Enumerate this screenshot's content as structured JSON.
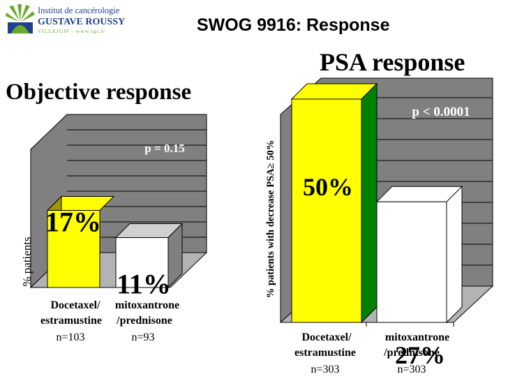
{
  "header": {
    "logo_line1": "Institut de cancérologie",
    "logo_line2": "GUSTAVE ROUSSY",
    "logo_line3": "VILLEJUIF - www.igr.fr",
    "title": "SWOG 9916: Response"
  },
  "colors": {
    "docetaxel": "#ffff00",
    "docetaxel_side_left": "#999900",
    "docetaxel_side_right": "#008000",
    "mitoxantrone": "#ffffff",
    "wall": "#808080",
    "floor": "#b3b3b3",
    "logo_blue": "#1f3f8f",
    "logo_green": "#6aaa2a"
  },
  "chart_data": [
    {
      "type": "bar",
      "title": "Objective response",
      "ylabel": "% patients",
      "categories": [
        "Docetaxel/ estramustine",
        "mitoxantrone /prednisone"
      ],
      "category_lines": [
        [
          "Docetaxel/",
          "estramustine"
        ],
        [
          "mitoxantrone",
          "/prednisone"
        ]
      ],
      "n_labels": [
        "n=103",
        "n=93"
      ],
      "values": [
        17,
        11
      ],
      "value_labels": [
        "17%",
        "11%"
      ],
      "annotation": "p = 0.15",
      "grid": true
    },
    {
      "type": "bar",
      "title": "PSA response",
      "ylabel": "% patients with decrease PSA≥ 50%",
      "categories": [
        "Docetaxel/ estramustine",
        "mitoxantrone /prednisone"
      ],
      "category_lines": [
        [
          "Docetaxel/",
          "estramustine"
        ],
        [
          "mitoxantrone",
          "/prednisone"
        ]
      ],
      "n_labels": [
        "n=303",
        "n=303"
      ],
      "values": [
        50,
        27
      ],
      "value_labels": [
        "50%",
        "27%"
      ],
      "annotation": "p < 0.0001",
      "grid": true
    }
  ]
}
